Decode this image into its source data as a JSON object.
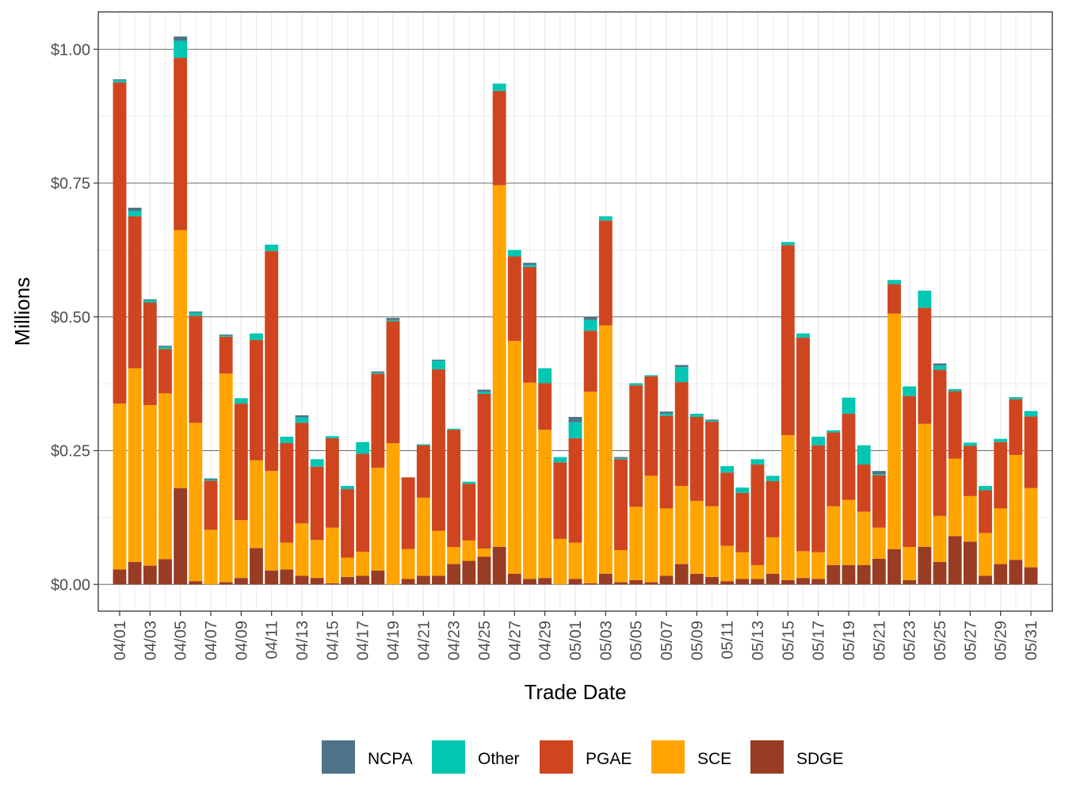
{
  "chart_data": {
    "type": "bar",
    "stacked": true,
    "title": "",
    "xlabel": "Trade Date",
    "ylabel": "Millions",
    "ylim": [
      -0.05,
      1.07
    ],
    "y_ticks": [
      0,
      0.25,
      0.5,
      0.75,
      1.0
    ],
    "y_tick_labels": [
      "$0.00",
      "$0.25",
      "$0.50",
      "$0.75",
      "$1.00"
    ],
    "x_tick_labels": [
      "04/01",
      "04/03",
      "04/05",
      "04/07",
      "04/09",
      "04/11",
      "04/13",
      "04/15",
      "04/17",
      "04/19",
      "04/21",
      "04/23",
      "04/25",
      "04/27",
      "04/29",
      "05/01",
      "05/03",
      "05/05",
      "05/07",
      "05/09",
      "05/11",
      "05/13",
      "05/15",
      "05/17",
      "05/19",
      "05/21",
      "05/23",
      "05/25",
      "05/27",
      "05/29",
      "05/31"
    ],
    "legend_position": "bottom",
    "stack_order_bottom_to_top": [
      "SDGE",
      "SCE",
      "PGAE",
      "Other",
      "NCPA"
    ],
    "legend_order": [
      "NCPA",
      "Other",
      "PGAE",
      "SCE",
      "SDGE"
    ],
    "colors": {
      "NCPA": "#4e7389",
      "Other": "#00c6b2",
      "PGAE": "#cf4520",
      "SCE": "#ffa400",
      "SDGE": "#983c25"
    },
    "categories": [
      "04/01",
      "04/02",
      "04/03",
      "04/04",
      "04/05",
      "04/06",
      "04/07",
      "04/08",
      "04/09",
      "04/10",
      "04/11",
      "04/12",
      "04/13",
      "04/14",
      "04/15",
      "04/16",
      "04/17",
      "04/18",
      "04/19",
      "04/20",
      "04/21",
      "04/22",
      "04/23",
      "04/24",
      "04/25",
      "04/26",
      "04/27",
      "04/28",
      "04/29",
      "04/30",
      "05/01",
      "05/02",
      "05/03",
      "05/04",
      "05/05",
      "05/06",
      "05/07",
      "05/08",
      "05/09",
      "05/10",
      "05/11",
      "05/12",
      "05/13",
      "05/14",
      "05/15",
      "05/16",
      "05/17",
      "05/18",
      "05/19",
      "05/20",
      "05/21",
      "05/22",
      "05/23",
      "05/24",
      "05/25",
      "05/26",
      "05/27",
      "05/28",
      "05/29",
      "05/30",
      "05/31"
    ],
    "series": [
      {
        "name": "SDGE",
        "values": [
          0.028,
          0.042,
          0.035,
          0.047,
          0.18,
          0.006,
          0.0,
          0.004,
          0.012,
          0.068,
          0.026,
          0.028,
          0.016,
          0.012,
          0.002,
          0.014,
          0.016,
          0.026,
          0.0,
          0.01,
          0.016,
          0.016,
          0.038,
          0.044,
          0.052,
          0.07,
          0.02,
          0.01,
          0.012,
          0.0,
          0.01,
          0.002,
          0.02,
          0.004,
          0.008,
          0.004,
          0.016,
          0.038,
          0.02,
          0.014,
          0.006,
          0.01,
          0.01,
          0.02,
          0.008,
          0.012,
          0.01,
          0.036,
          0.036,
          0.036,
          0.048,
          0.066,
          0.008,
          0.07,
          0.042,
          0.09,
          0.08,
          0.016,
          0.038,
          0.046,
          0.032
        ]
      },
      {
        "name": "SCE",
        "values": [
          0.31,
          0.362,
          0.3,
          0.31,
          0.482,
          0.296,
          0.102,
          0.39,
          0.108,
          0.164,
          0.186,
          0.05,
          0.098,
          0.071,
          0.104,
          0.036,
          0.045,
          0.192,
          0.264,
          0.056,
          0.146,
          0.084,
          0.032,
          0.038,
          0.015,
          0.676,
          0.435,
          0.367,
          0.277,
          0.085,
          0.068,
          0.358,
          0.464,
          0.06,
          0.137,
          0.199,
          0.126,
          0.146,
          0.136,
          0.132,
          0.066,
          0.05,
          0.026,
          0.068,
          0.271,
          0.05,
          0.05,
          0.11,
          0.122,
          0.1,
          0.058,
          0.44,
          0.062,
          0.23,
          0.086,
          0.145,
          0.085,
          0.08,
          0.104,
          0.196,
          0.148
        ]
      },
      {
        "name": "PGAE",
        "values": [
          0.6,
          0.284,
          0.192,
          0.083,
          0.322,
          0.2,
          0.092,
          0.069,
          0.218,
          0.225,
          0.411,
          0.186,
          0.188,
          0.137,
          0.167,
          0.128,
          0.183,
          0.176,
          0.228,
          0.134,
          0.098,
          0.302,
          0.219,
          0.106,
          0.289,
          0.176,
          0.158,
          0.216,
          0.087,
          0.143,
          0.195,
          0.114,
          0.196,
          0.17,
          0.227,
          0.186,
          0.173,
          0.194,
          0.157,
          0.158,
          0.137,
          0.111,
          0.188,
          0.105,
          0.355,
          0.399,
          0.2,
          0.138,
          0.161,
          0.088,
          0.098,
          0.055,
          0.282,
          0.217,
          0.273,
          0.126,
          0.094,
          0.08,
          0.124,
          0.104,
          0.134
        ]
      },
      {
        "name": "Other",
        "values": [
          0.004,
          0.01,
          0.004,
          0.004,
          0.032,
          0.006,
          0.002,
          0.002,
          0.01,
          0.012,
          0.012,
          0.012,
          0.01,
          0.014,
          0.004,
          0.006,
          0.022,
          0.002,
          0.002,
          0.0,
          0.002,
          0.016,
          0.002,
          0.004,
          0.004,
          0.014,
          0.012,
          0.004,
          0.028,
          0.01,
          0.03,
          0.02,
          0.008,
          0.002,
          0.004,
          0.002,
          0.004,
          0.028,
          0.006,
          0.002,
          0.012,
          0.01,
          0.01,
          0.01,
          0.006,
          0.008,
          0.016,
          0.004,
          0.03,
          0.036,
          0.002,
          0.008,
          0.018,
          0.032,
          0.008,
          0.004,
          0.006,
          0.008,
          0.006,
          0.004,
          0.01
        ]
      },
      {
        "name": "NCPA",
        "values": [
          0.002,
          0.006,
          0.002,
          0.002,
          0.008,
          0.002,
          0.002,
          0.002,
          0.0,
          0.0,
          0.0,
          0.0,
          0.004,
          0.0,
          0.0,
          0.0,
          0.0,
          0.002,
          0.004,
          0.0,
          0.0,
          0.002,
          0.0,
          0.0,
          0.004,
          0.0,
          0.0,
          0.004,
          0.0,
          0.0,
          0.01,
          0.006,
          0.0,
          0.002,
          0.0,
          0.0,
          0.004,
          0.004,
          0.0,
          0.002,
          0.0,
          0.0,
          0.0,
          0.0,
          0.0,
          0.0,
          0.0,
          0.0,
          0.0,
          0.0,
          0.006,
          0.0,
          0.0,
          0.0,
          0.004,
          0.0,
          0.0,
          0.0,
          0.0,
          0.0,
          0.0
        ]
      }
    ]
  }
}
